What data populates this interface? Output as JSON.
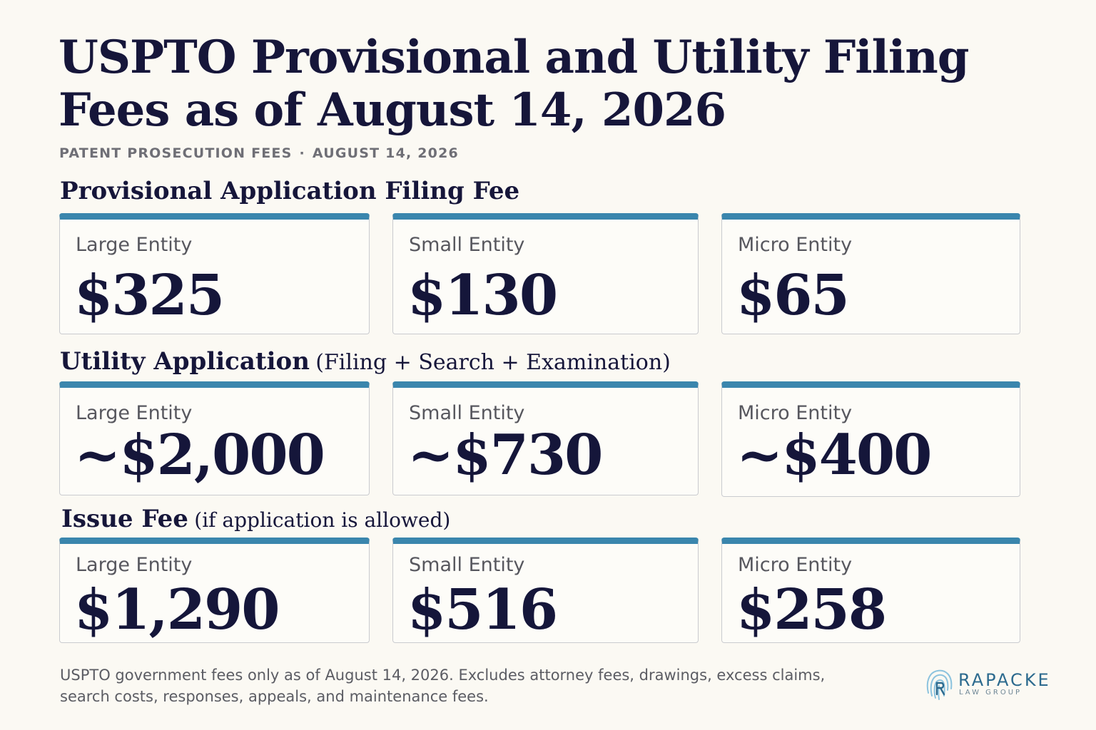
{
  "header": {
    "title": "USPTO Provisional and Utility Filing Fees as of August 14, 2026",
    "category": "PATENT PROSECUTION FEES",
    "separator": "·",
    "date": "AUGUST 14, 2026"
  },
  "sections": [
    {
      "heading": "Provisional Application Filing Fee",
      "heading_aside": "",
      "cards": [
        {
          "label": "Large Entity",
          "value": "$325"
        },
        {
          "label": "Small Entity",
          "value": "$130"
        },
        {
          "label": "Micro Entity",
          "value": "$65"
        }
      ]
    },
    {
      "heading": "Utility Application",
      "heading_aside": "(Filing + Search + Examination)",
      "cards": [
        {
          "label": "Large Entity",
          "value": "~$2,000"
        },
        {
          "label": "Small Entity",
          "value": "~$730"
        },
        {
          "label": "Micro Entity",
          "value": "~$400"
        }
      ]
    },
    {
      "heading": "Issue Fee",
      "heading_aside": "(if application is allowed)",
      "cards": [
        {
          "label": "Large Entity",
          "value": "$1,290"
        },
        {
          "label": "Small Entity",
          "value": "$516"
        },
        {
          "label": "Micro Entity",
          "value": "$258"
        }
      ]
    }
  ],
  "footnote": "USPTO government fees only as of August 14, 2026. Excludes attorney fees, drawings, excess claims, search costs, responses, appeals, and maintenance fees.",
  "logo": {
    "name": "RAPACKE",
    "subname": "LAW GROUP",
    "icon": "fingerprint-icon"
  },
  "colors": {
    "accent": "#3a86ad",
    "text": "#16163a",
    "background": "#fbf9f3"
  }
}
